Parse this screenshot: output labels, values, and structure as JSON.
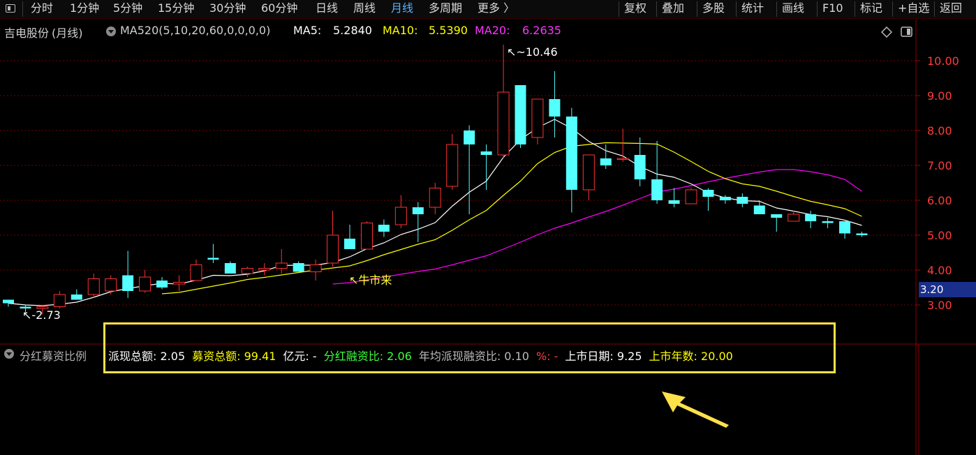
{
  "toolbar": {
    "left_tabs": [
      "分时",
      "1分钟",
      "5分钟",
      "15分钟",
      "30分钟",
      "60分钟",
      "日线",
      "周线",
      "月线",
      "多周期",
      "更多 〉"
    ],
    "active_tab": "月线",
    "right_buttons": [
      "复权",
      "叠加",
      "多股",
      "统计",
      "画线",
      "F10",
      "标记",
      "+自选",
      "返回"
    ]
  },
  "chart_header": {
    "stock_name": "吉电股份",
    "period": "(月线)",
    "ma_config": "MA520(5,10,20,60,0,0,0,0)",
    "ma5_label": "MA5:",
    "ma5_value": "5.2840",
    "ma10_label": "MA10:",
    "ma10_value": "5.5390",
    "ma20_label": "MA20:",
    "ma20_value": "6.2635"
  },
  "colors": {
    "up": "#ff3232",
    "down": "#54ffff",
    "ma5": "#ffffff",
    "ma10": "#ffff00",
    "ma20": "#ff00ff",
    "grid": "#7a0000",
    "axis_text": "#ff3c3c",
    "highlight": "#ffe14a"
  },
  "annotations": {
    "max_label": "10.46",
    "min_label": "2.73",
    "text_note": "牛市来",
    "price_tag": "3.20"
  },
  "indicator": {
    "name": "分红募资比例",
    "items": [
      {
        "label": "派现总额:",
        "value": "2.05",
        "label_color": "#ffffff",
        "value_color": "#ffffff"
      },
      {
        "label": "募资总额:",
        "value": "99.41",
        "label_color": "#ffff00",
        "value_color": "#ffff00"
      },
      {
        "label": "亿元:",
        "value": "-",
        "label_color": "#ffffff",
        "value_color": "#ffffff"
      },
      {
        "label": "分红融资比:",
        "value": "2.06",
        "label_color": "#3cff3c",
        "value_color": "#3cff3c"
      },
      {
        "label": "年均派现融资比:",
        "value": "0.10",
        "label_color": "#bbbbbb",
        "value_color": "#bbbbbb"
      },
      {
        "label": "%:",
        "value": "-",
        "label_color": "#ff3c3c",
        "value_color": "#ff3c3c"
      },
      {
        "label": "上市日期:",
        "value": "9.25",
        "label_color": "#ffffff",
        "value_color": "#ffffff"
      },
      {
        "label": "上市年数:",
        "value": "20.00",
        "label_color": "#ffff00",
        "value_color": "#ffff00"
      }
    ]
  },
  "chart_data": {
    "type": "candlestick",
    "y_ticks": [
      "10.00",
      "9.00",
      "8.00",
      "7.00",
      "6.00",
      "5.00",
      "4.00",
      "3.00"
    ],
    "ylim": [
      2.4,
      10.9
    ],
    "candles": [
      [
        3.15,
        3.15,
        2.95,
        3.05
      ],
      [
        2.95,
        3.0,
        2.8,
        2.9
      ],
      [
        2.9,
        3.0,
        2.73,
        2.95
      ],
      [
        2.95,
        3.4,
        2.9,
        3.3
      ],
      [
        3.3,
        3.45,
        3.15,
        3.15
      ],
      [
        3.3,
        3.9,
        3.2,
        3.75
      ],
      [
        3.4,
        3.85,
        3.3,
        3.75
      ],
      [
        3.85,
        4.55,
        3.2,
        3.4
      ],
      [
        3.4,
        4.0,
        3.35,
        3.8
      ],
      [
        3.7,
        3.8,
        3.45,
        3.5
      ],
      [
        3.6,
        3.85,
        3.4,
        3.65
      ],
      [
        3.7,
        4.3,
        3.7,
        4.15
      ],
      [
        4.35,
        4.75,
        4.2,
        4.3
      ],
      [
        4.2,
        4.25,
        3.9,
        3.9
      ],
      [
        3.9,
        4.1,
        3.8,
        4.05
      ],
      [
        4.0,
        4.2,
        3.85,
        4.05
      ],
      [
        4.05,
        4.6,
        3.9,
        4.2
      ],
      [
        4.2,
        4.25,
        3.95,
        3.95
      ],
      [
        3.95,
        4.3,
        3.7,
        4.15
      ],
      [
        4.2,
        5.7,
        4.1,
        5.0
      ],
      [
        4.9,
        5.3,
        4.6,
        4.6
      ],
      [
        4.6,
        5.4,
        4.6,
        5.35
      ],
      [
        5.3,
        5.45,
        4.95,
        5.1
      ],
      [
        5.3,
        6.15,
        5.2,
        5.8
      ],
      [
        5.8,
        5.95,
        4.8,
        5.6
      ],
      [
        5.8,
        6.5,
        5.6,
        6.35
      ],
      [
        6.4,
        7.9,
        6.3,
        7.6
      ],
      [
        8.0,
        8.15,
        5.6,
        7.6
      ],
      [
        7.4,
        7.6,
        6.3,
        7.3
      ],
      [
        7.3,
        10.46,
        7.2,
        9.1
      ],
      [
        9.3,
        9.3,
        7.5,
        7.6
      ],
      [
        7.8,
        8.9,
        7.6,
        8.9
      ],
      [
        8.9,
        9.7,
        7.8,
        8.4
      ],
      [
        8.4,
        8.65,
        5.65,
        6.3
      ],
      [
        6.3,
        7.3,
        6.0,
        7.3
      ],
      [
        7.2,
        7.6,
        6.9,
        7.0
      ],
      [
        7.2,
        8.05,
        7.1,
        7.2
      ],
      [
        7.3,
        7.8,
        6.4,
        6.6
      ],
      [
        6.6,
        7.7,
        5.9,
        6.0
      ],
      [
        6.0,
        6.35,
        5.8,
        5.9
      ],
      [
        5.9,
        6.35,
        5.9,
        6.3
      ],
      [
        6.3,
        6.35,
        5.7,
        6.1
      ],
      [
        6.1,
        6.15,
        5.9,
        6.0
      ],
      [
        6.1,
        6.2,
        5.8,
        5.9
      ],
      [
        5.85,
        6.0,
        5.6,
        5.6
      ],
      [
        5.6,
        5.6,
        5.1,
        5.5
      ],
      [
        5.4,
        5.7,
        5.4,
        5.6
      ],
      [
        5.6,
        5.7,
        5.2,
        5.4
      ],
      [
        5.4,
        5.5,
        5.2,
        5.35
      ],
      [
        5.4,
        5.4,
        4.9,
        5.05
      ],
      [
        5.05,
        5.1,
        4.95,
        5.0
      ]
    ],
    "ma5": [
      3.05,
      3.0,
      2.98,
      3.02,
      3.08,
      3.22,
      3.38,
      3.47,
      3.55,
      3.62,
      3.6,
      3.71,
      3.85,
      3.84,
      3.88,
      3.98,
      4.13,
      4.14,
      4.14,
      4.22,
      4.38,
      4.61,
      4.78,
      5.02,
      5.17,
      5.36,
      5.83,
      6.23,
      6.55,
      7.23,
      7.74,
      8.08,
      8.32,
      8.06,
      7.69,
      7.42,
      7.27,
      6.97,
      6.75,
      6.66,
      6.47,
      6.21,
      6.07,
      5.99,
      5.97,
      5.78,
      5.69,
      5.59,
      5.53,
      5.43,
      5.28
    ],
    "ma10": [
      null,
      null,
      null,
      null,
      null,
      null,
      null,
      null,
      null,
      3.32,
      3.36,
      3.45,
      3.54,
      3.63,
      3.73,
      3.79,
      3.86,
      3.93,
      4.0,
      4.06,
      4.12,
      4.27,
      4.44,
      4.59,
      4.74,
      4.87,
      5.14,
      5.44,
      5.71,
      6.14,
      6.55,
      7.05,
      7.37,
      7.55,
      7.6,
      7.65,
      7.64,
      7.63,
      7.61,
      7.38,
      7.11,
      6.83,
      6.62,
      6.47,
      6.4,
      6.26,
      6.11,
      5.97,
      5.87,
      5.76,
      5.54
    ],
    "ma20": [
      null,
      null,
      null,
      null,
      null,
      null,
      null,
      null,
      null,
      null,
      null,
      null,
      null,
      null,
      null,
      null,
      null,
      null,
      null,
      3.6,
      3.64,
      3.72,
      3.8,
      3.88,
      3.96,
      4.03,
      4.15,
      4.28,
      4.41,
      4.6,
      4.8,
      5.01,
      5.2,
      5.35,
      5.52,
      5.68,
      5.86,
      6.05,
      6.24,
      6.32,
      6.42,
      6.53,
      6.63,
      6.72,
      6.81,
      6.88,
      6.88,
      6.82,
      6.73,
      6.6,
      6.26
    ]
  }
}
